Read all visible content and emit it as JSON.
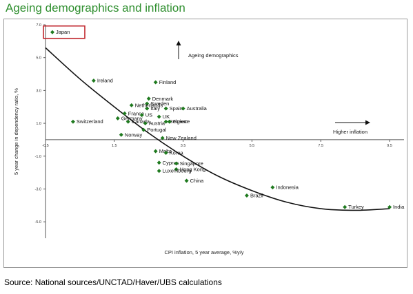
{
  "title": "Ageing demographics and inflation",
  "source": "Source: National sources/UNCTAD/Haver/UBS calculations",
  "chart_data": {
    "type": "scatter",
    "title": "",
    "xlabel": "CPI inflation, 5 year average, %y/y",
    "ylabel": "5 year change in dependency ratio, %",
    "xlim": [
      -0.5,
      10
    ],
    "ylim": [
      -6.0,
      7.0
    ],
    "x_ticks": [
      -0.5,
      1.5,
      3.5,
      5.5,
      7.5,
      9.5
    ],
    "x_tick_labels": [
      "-0.5",
      "1.5",
      "3.5",
      "5.5",
      "7.5",
      "9.5"
    ],
    "y_ticks": [
      7.0,
      5.0,
      3.0,
      1.0,
      -1.0,
      -3.0,
      -5.0
    ],
    "y_tick_labels": [
      "7.0",
      "5.0",
      "3.0",
      "1.0",
      "-1.0",
      "-3.0",
      "-5.0"
    ],
    "grid": false,
    "marker_color": "#1f7a1f",
    "points": [
      {
        "label": "Japan",
        "x": -0.3,
        "y": 6.55
      },
      {
        "label": "Ireland",
        "x": 0.9,
        "y": 3.6
      },
      {
        "label": "Finland",
        "x": 2.7,
        "y": 3.5
      },
      {
        "label": "Denmark",
        "x": 2.5,
        "y": 2.5
      },
      {
        "label": "Sweden",
        "x": 2.45,
        "y": 2.2
      },
      {
        "label": "Netherlands",
        "x": 2.0,
        "y": 2.1
      },
      {
        "label": "Italy",
        "x": 2.45,
        "y": 1.9
      },
      {
        "label": "Spain",
        "x": 3.0,
        "y": 1.9
      },
      {
        "label": "Australia",
        "x": 3.5,
        "y": 1.9
      },
      {
        "label": "France",
        "x": 1.8,
        "y": 1.6
      },
      {
        "label": "US",
        "x": 2.3,
        "y": 1.5
      },
      {
        "label": "Germany",
        "x": 1.6,
        "y": 1.3
      },
      {
        "label": "UK",
        "x": 2.8,
        "y": 1.4
      },
      {
        "label": "Canada",
        "x": 1.9,
        "y": 1.1
      },
      {
        "label": "Belgium",
        "x": 3.0,
        "y": 1.1
      },
      {
        "label": "Greece",
        "x": 3.1,
        "y": 1.1
      },
      {
        "label": "Switzerland",
        "x": 0.3,
        "y": 1.1
      },
      {
        "label": "Austria",
        "x": 2.4,
        "y": 1.0
      },
      {
        "label": "Portugal",
        "x": 2.35,
        "y": 0.6
      },
      {
        "label": "Norway",
        "x": 1.7,
        "y": 0.3
      },
      {
        "label": "New Zealand",
        "x": 2.9,
        "y": 0.1
      },
      {
        "label": "Malta",
        "x": 2.7,
        "y": -0.7
      },
      {
        "label": "Korea",
        "x": 3.0,
        "y": -0.8
      },
      {
        "label": "Cyprus",
        "x": 2.8,
        "y": -1.4
      },
      {
        "label": "Singapore",
        "x": 3.3,
        "y": -1.45
      },
      {
        "label": "Hong Kong",
        "x": 3.3,
        "y": -1.8
      },
      {
        "label": "Luxembourg",
        "x": 2.8,
        "y": -1.9
      },
      {
        "label": "China",
        "x": 3.6,
        "y": -2.5
      },
      {
        "label": "Indonesia",
        "x": 6.1,
        "y": -2.9
      },
      {
        "label": "Brazil",
        "x": 5.35,
        "y": -3.4
      },
      {
        "label": "Turkey",
        "x": 8.2,
        "y": -4.1
      },
      {
        "label": "India",
        "x": 9.5,
        "y": -4.1
      }
    ],
    "trendline": {
      "type": "polynomial",
      "x": [
        -0.5,
        0.5,
        1.5,
        2.5,
        3.5,
        4.5,
        5.5,
        6.5,
        7.5,
        8.5,
        9.5
      ],
      "y": [
        5.6,
        3.7,
        2.0,
        0.4,
        -1.0,
        -2.2,
        -3.1,
        -3.8,
        -4.2,
        -4.3,
        -4.2
      ]
    },
    "annotations": {
      "ageing": "Ageing demographics",
      "inflation": "Higher inflation"
    },
    "highlight": {
      "label": "Japan",
      "box_color": "#c0272d"
    }
  }
}
